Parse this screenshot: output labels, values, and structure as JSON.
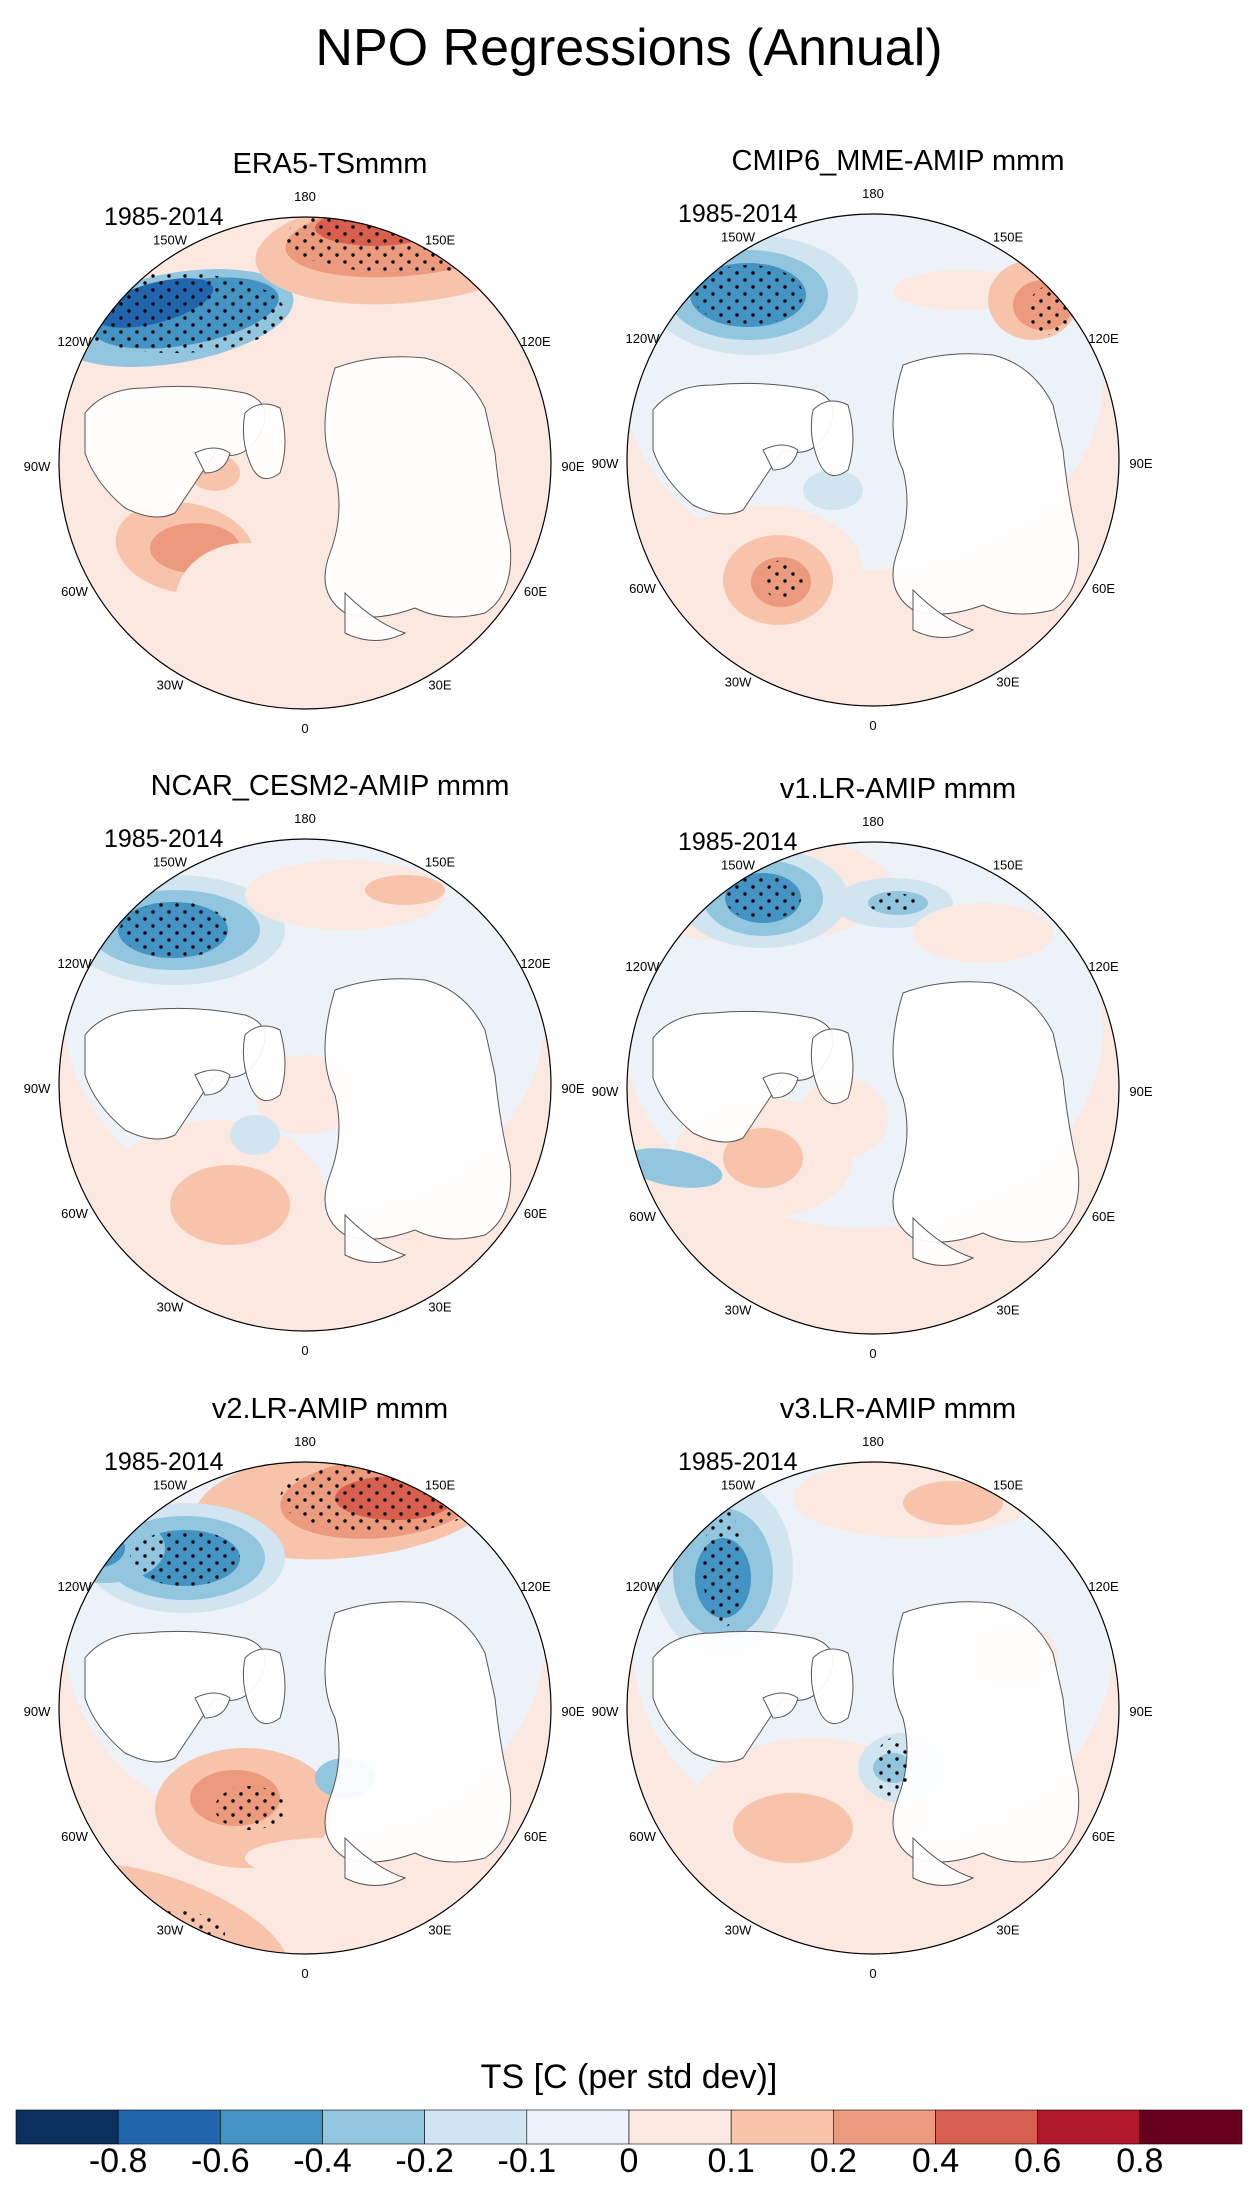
{
  "title": "NPO Regressions (Annual)",
  "panels": [
    {
      "id": "era5",
      "title": "ERA5-TSmmm",
      "period": "1985-2014"
    },
    {
      "id": "cmip6",
      "title": "CMIP6_MME-AMIP  mmm",
      "period": "1985-2014"
    },
    {
      "id": "cesm2",
      "title": "NCAR_CESM2-AMIP  mmm",
      "period": "1985-2014"
    },
    {
      "id": "v1",
      "title": "v1.LR-AMIP  mmm",
      "period": "1985-2014"
    },
    {
      "id": "v2",
      "title": "v2.LR-AMIP  mmm",
      "period": "1985-2014"
    },
    {
      "id": "v3",
      "title": "v3.LR-AMIP  mmm",
      "period": "1985-2014"
    }
  ],
  "longitude_labels": [
    "180",
    "150E",
    "120E",
    "90E",
    "60E",
    "30E",
    "0",
    "30W",
    "60W",
    "90W",
    "120W",
    "150W"
  ],
  "colorbar": {
    "title": "TS [C (per std dev)]",
    "labels": [
      "-0.8",
      "-0.6",
      "-0.4",
      "-0.2",
      "-0.1",
      "0",
      "0.1",
      "0.2",
      "0.4",
      "0.6",
      "0.8"
    ],
    "colors": [
      "#0b2f5e",
      "#2166ac",
      "#4393c3",
      "#92c5de",
      "#d1e5f0",
      "#ecf2f7",
      "#fbe8e0",
      "#f7c3aa",
      "#ec9a7e",
      "#d6604d",
      "#b2182b",
      "#67001f"
    ]
  }
}
